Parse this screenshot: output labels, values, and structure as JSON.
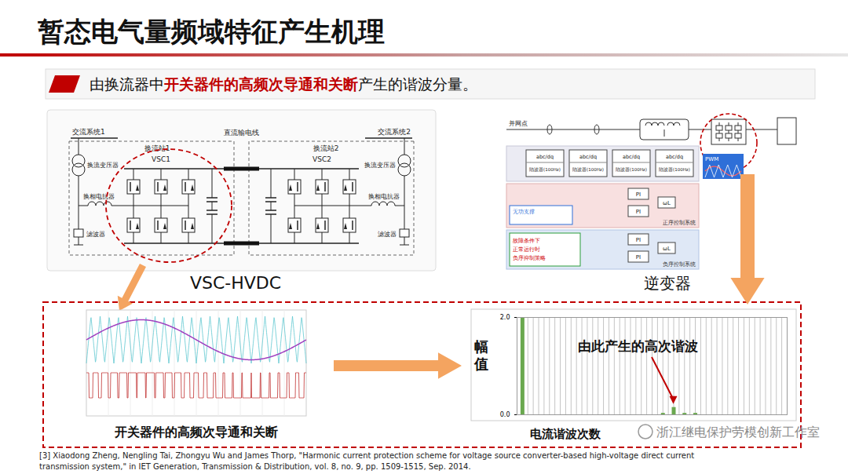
{
  "header": {
    "title": "暂态电气量频域特征产生机理",
    "subtitle": [
      {
        "text": "由换流器中",
        "emphasis": false
      },
      {
        "text": "开关器件的高频次导通和关断",
        "emphasis": true
      },
      {
        "text": "产生的谐波分量。",
        "emphasis": false
      }
    ]
  },
  "vsc_hvdc": {
    "caption": "VSC-HVDC",
    "dc_line": "直流输电线",
    "stations": [
      {
        "system": "交流系统1",
        "station": "换流站1",
        "converter": "VSC1",
        "transformer": "换流变压器",
        "reactor": "换相电抗器",
        "filter": "滤波器"
      },
      {
        "system": "交流系统2",
        "station": "换流站2",
        "converter": "VSC2",
        "transformer": "换流变压器",
        "reactor": "换相电抗器",
        "filter": "滤波器"
      }
    ]
  },
  "inverter": {
    "caption": "逆变器",
    "pcc": "并网点",
    "blocks": [
      "abc/dq",
      "abc/dq",
      "abc/dq",
      "abc/dq"
    ],
    "notch": "陷波器(100Hz)",
    "pi": "PI",
    "wl": "ωL",
    "reactive": "无功支撑",
    "positive": "正序控制系统",
    "negative": "负序控制系统",
    "notes": [
      "故障条件下",
      "正常运行时",
      "负序抑制策略"
    ],
    "pwm": "PWM"
  },
  "switching": {
    "caption": "开关器件的高频次导通和关断"
  },
  "chart_data": {
    "type": "bar",
    "y_label": "幅值",
    "x_label": "电流谐波次数",
    "annotation": "由此产生的高次谐波",
    "x": [
      1,
      27,
      29,
      31,
      33
    ],
    "values": [
      2.0,
      0.03,
      0.15,
      0.03,
      0.03
    ],
    "color": "#6aa84f",
    "xlim": [
      0,
      50
    ],
    "xticks": [
      0,
      1,
      2,
      3,
      4,
      5,
      6,
      7,
      8,
      9,
      10,
      11,
      12,
      13,
      14,
      15,
      16,
      17,
      18,
      19,
      20,
      21,
      22,
      23,
      24,
      25,
      26,
      27,
      28,
      29,
      30,
      31,
      32,
      33,
      34,
      35,
      36,
      37,
      38,
      39,
      40,
      41,
      42,
      43,
      44,
      45,
      46,
      47,
      48,
      49,
      50
    ],
    "ylim": [
      0,
      2
    ],
    "yticks": [
      {
        "value": 0,
        "label": "0.0"
      },
      {
        "value": 2,
        "label": "2.0"
      }
    ],
    "grid": true,
    "tick_labels": "y"
  },
  "reference": [
    "[3] Xiaodong Zheng, Nengling Tai, Zhongyu Wu and James Thorp, \"Harmonic current protection scheme for voltage source converter-based high-voltage direct current",
    "transmission system,\" in IET Generation, Transmission & Distribution, vol. 8, no. 9, pp. 1509-1515, Sep. 2014."
  ],
  "watermark": "浙江继电保护劳模创新工作室"
}
